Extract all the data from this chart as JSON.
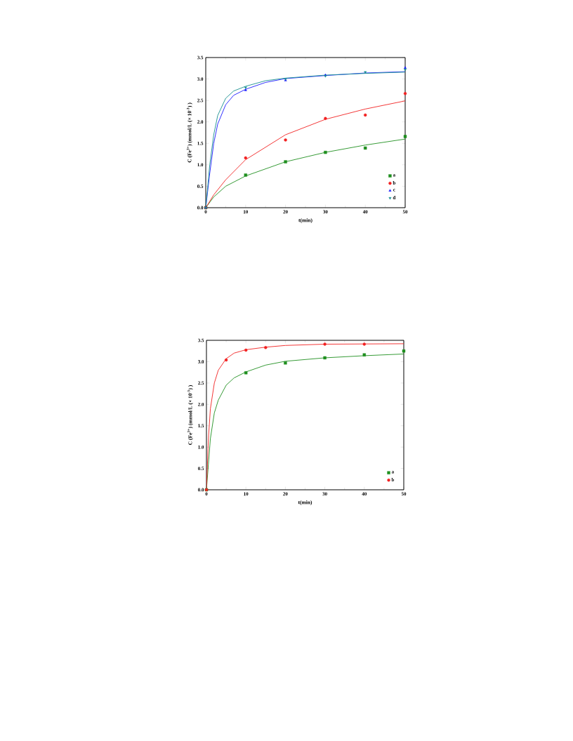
{
  "chart_data": [
    {
      "type": "scatter",
      "xlabel": "t(min)",
      "ylabel": "C (Fe$^{3+}$) (mmol/L (× 10$^{-3}$) )",
      "xlim": [
        0,
        50
      ],
      "ylim": [
        0,
        3.5
      ],
      "xticks": [
        0,
        10,
        20,
        30,
        40,
        50
      ],
      "yticks": [
        {
          "value": 0,
          "label": "0.0"
        },
        {
          "value": 0.5,
          "label": "0.5"
        },
        {
          "value": 1,
          "label": "1.0"
        },
        {
          "value": 1.5,
          "label": "1.5"
        },
        {
          "value": 2,
          "label": "2.0"
        },
        {
          "value": 2.5,
          "label": "2.5"
        },
        {
          "value": 3,
          "label": "3.0"
        },
        {
          "value": 3.5,
          "label": "3.5"
        }
      ],
      "legend": "bottom right",
      "series": [
        {
          "name": "a",
          "marker": "square",
          "color": "#1f8f1f",
          "x": [
            0,
            10,
            20,
            30,
            40,
            50
          ],
          "values": [
            0,
            0.76,
            1.07,
            1.29,
            1.39,
            1.66
          ]
        },
        {
          "name": "b",
          "marker": "circle",
          "color": "#f22020",
          "x": [
            0,
            10,
            20,
            30,
            40,
            50
          ],
          "values": [
            0,
            1.16,
            1.58,
            2.08,
            2.16,
            2.66
          ]
        },
        {
          "name": "c",
          "marker": "triangle",
          "color": "#1a1aff",
          "x": [
            0,
            10,
            20,
            30,
            40,
            50
          ],
          "values": [
            0,
            2.74,
            2.97,
            3.09,
            null,
            3.26
          ]
        },
        {
          "name": "d",
          "marker": "triangle down",
          "color": "#178f8f",
          "x": [
            0,
            10,
            20,
            30,
            40,
            50
          ],
          "values": [
            0,
            2.8,
            3.0,
            3.07,
            3.16,
            3.22
          ]
        },
        {
          "type": "line",
          "marker": "none",
          "color": "#1f8f1f",
          "x": [
            0,
            2,
            5,
            10,
            20,
            30,
            40,
            50
          ],
          "values": [
            0,
            0.25,
            0.5,
            0.74,
            1.07,
            1.29,
            1.46,
            1.6
          ]
        },
        {
          "type": "line",
          "marker": "none",
          "color": "#f22020",
          "x": [
            0,
            2,
            5,
            10,
            20,
            30,
            40,
            50
          ],
          "values": [
            0,
            0.3,
            0.65,
            1.12,
            1.7,
            2.06,
            2.3,
            2.49
          ]
        },
        {
          "type": "line",
          "marker": "none",
          "color": "#1a1aff",
          "x": [
            0,
            1,
            2,
            3,
            5,
            7,
            10,
            15,
            20,
            30,
            40,
            50
          ],
          "values": [
            0,
            0.8,
            1.5,
            1.95,
            2.4,
            2.62,
            2.76,
            2.92,
            3.01,
            3.08,
            3.14,
            3.17
          ]
        },
        {
          "type": "line",
          "marker": "none",
          "color": "#178f8f",
          "x": [
            0,
            1,
            2,
            3,
            5,
            7,
            10,
            15,
            20,
            30,
            40,
            50
          ],
          "values": [
            0,
            1.0,
            1.7,
            2.15,
            2.55,
            2.72,
            2.83,
            2.96,
            3.02,
            3.09,
            3.13,
            3.16
          ]
        }
      ]
    },
    {
      "type": "scatter",
      "xlabel": "t(min)",
      "ylabel": "C (Fe$^{3+}$) (mmol/L (× 10$^{-3}$) )",
      "xlim": [
        0,
        50
      ],
      "ylim": [
        0,
        3.5
      ],
      "xticks": [
        0,
        10,
        20,
        30,
        40,
        50
      ],
      "yticks": [
        {
          "value": 0,
          "label": "0.0"
        },
        {
          "value": 0.5,
          "label": "0.5"
        },
        {
          "value": 1,
          "label": "1.0"
        },
        {
          "value": 1.5,
          "label": "1.5"
        },
        {
          "value": 2,
          "label": "2.0"
        },
        {
          "value": 2.5,
          "label": "2.5"
        },
        {
          "value": 3,
          "label": "3.0"
        },
        {
          "value": 3.5,
          "label": "3.5"
        }
      ],
      "legend": "bottom right",
      "series": [
        {
          "name": "a",
          "marker": "square",
          "color": "#1f8f1f",
          "x": [
            0,
            10,
            20,
            30,
            40,
            50
          ],
          "values": [
            0,
            2.74,
            2.97,
            3.09,
            3.16,
            3.25
          ]
        },
        {
          "name": "b",
          "marker": "circle",
          "color": "#f22020",
          "x": [
            0,
            5,
            10,
            15,
            30,
            40
          ],
          "values": [
            0,
            3.04,
            3.27,
            3.33,
            3.41,
            3.41
          ]
        },
        {
          "type": "line",
          "marker": "none",
          "color": "#1f8f1f",
          "x": [
            0,
            0.5,
            1,
            2,
            3,
            5,
            7,
            10,
            15,
            20,
            30,
            40,
            50
          ],
          "values": [
            0,
            0.6,
            1.2,
            1.8,
            2.1,
            2.45,
            2.62,
            2.76,
            2.92,
            3.01,
            3.09,
            3.14,
            3.18
          ]
        },
        {
          "type": "line",
          "marker": "none",
          "color": "#f22020",
          "x": [
            0,
            0.5,
            1,
            2,
            3,
            5,
            7,
            10,
            15,
            20,
            30,
            50
          ],
          "values": [
            0,
            1.2,
            1.9,
            2.5,
            2.8,
            3.07,
            3.2,
            3.28,
            3.34,
            3.38,
            3.41,
            3.42
          ]
        }
      ]
    }
  ]
}
